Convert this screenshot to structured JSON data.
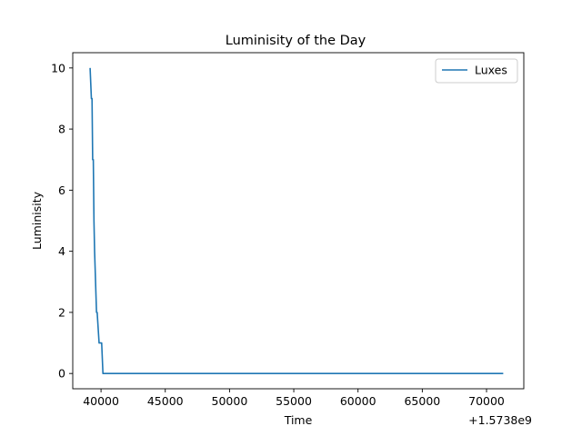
{
  "chart_data": {
    "type": "line",
    "title": "Luminisity of the Day",
    "xlabel": "Time",
    "ylabel": "Luminisity",
    "offset_label": "+1.5738e9",
    "x_ticks": [
      40000,
      45000,
      50000,
      55000,
      60000,
      65000,
      70000
    ],
    "x_tick_labels": [
      "40000",
      "45000",
      "50000",
      "55000",
      "60000",
      "65000",
      "70000"
    ],
    "y_ticks": [
      0,
      2,
      4,
      6,
      8,
      10
    ],
    "y_tick_labels": [
      "0",
      "2",
      "4",
      "6",
      "8",
      "10"
    ],
    "xlim": [
      37800,
      72900
    ],
    "ylim": [
      -0.5,
      10.5
    ],
    "grid": false,
    "legend_position": "top-right",
    "series": [
      {
        "name": "Luxes",
        "color": "#1f77b4",
        "x": [
          39150,
          39250,
          39300,
          39350,
          39400,
          39450,
          39500,
          39650,
          39700,
          39850,
          40050,
          40150,
          70050,
          71300
        ],
        "y": [
          10,
          9,
          9,
          7,
          7,
          5,
          4,
          2,
          2,
          1,
          1,
          0,
          0,
          0
        ]
      }
    ]
  }
}
